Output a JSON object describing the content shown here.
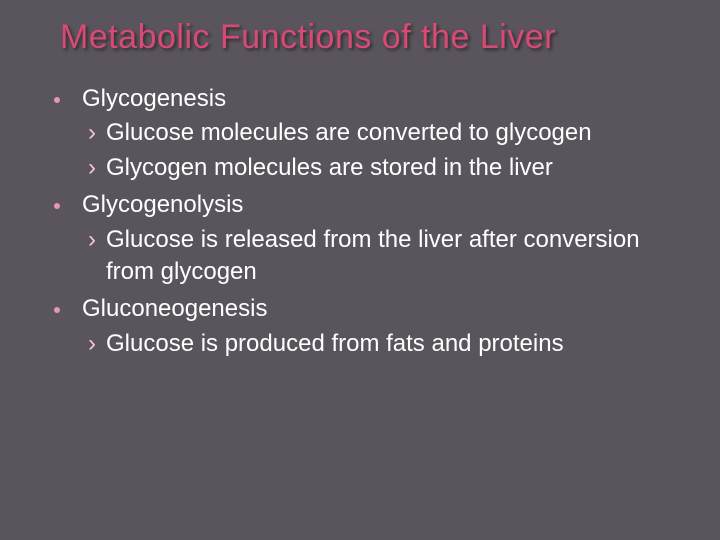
{
  "colors": {
    "background": "#5a545d",
    "title": "#d84a74",
    "dot": "#e19ab2",
    "angle": "#f0c6d4",
    "body_text": "#ffffff"
  },
  "title": "Metabolic Functions of the Liver",
  "items": [
    {
      "label": "Glycogenesis",
      "subs": [
        "Glucose molecules are converted to glycogen",
        "Glycogen molecules are stored in the liver"
      ]
    },
    {
      "label": "Glycogenolysis",
      "subs": [
        "Glucose is released from the liver after conversion from glycogen"
      ]
    },
    {
      "label": "Gluconeogenesis",
      "subs": [
        "Glucose is produced from fats and proteins"
      ]
    }
  ]
}
